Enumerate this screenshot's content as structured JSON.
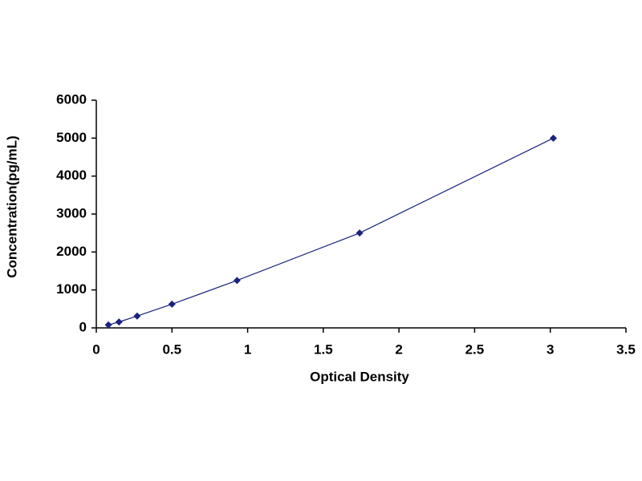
{
  "chart_data": {
    "type": "scatter",
    "line": true,
    "x_label": "Optical Density",
    "y_label": "Concentration(pg/mL)",
    "series": [
      {
        "color": "#1a237e",
        "x": [
          0.08,
          0.15,
          0.27,
          0.5,
          0.93,
          1.74,
          3.02
        ],
        "values": [
          78,
          156,
          312,
          625,
          1250,
          2500,
          5000
        ]
      }
    ],
    "xlim": [
      0,
      3.5
    ],
    "xticks": [
      0,
      0.5,
      1,
      1.5,
      2,
      2.5,
      3,
      3.5
    ],
    "ylim": [
      0,
      6000
    ],
    "yticks": [
      0,
      1000,
      2000,
      3000,
      4000,
      5000,
      6000
    ],
    "grid": false
  }
}
